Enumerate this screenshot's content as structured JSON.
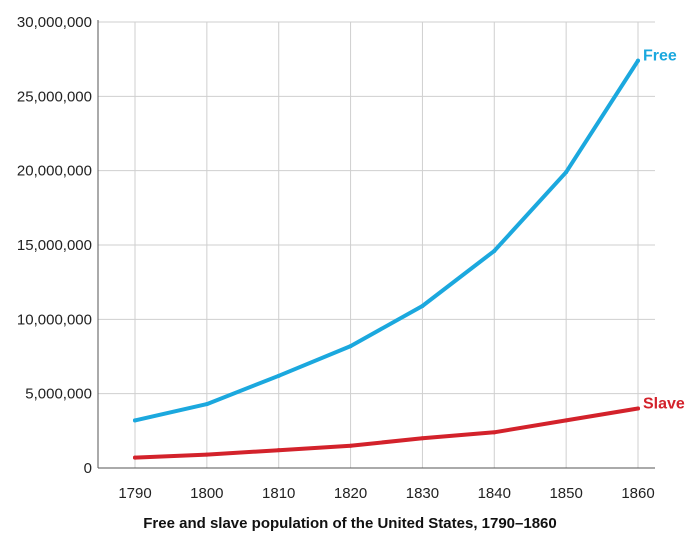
{
  "chart_data": {
    "type": "line",
    "caption": "Free and slave population of the United States, 1790–1860",
    "x": [
      "1790",
      "1800",
      "1810",
      "1820",
      "1830",
      "1840",
      "1850",
      "1860"
    ],
    "series": [
      {
        "name": "Free",
        "color": "#1ba8de",
        "values": [
          3200000,
          4300000,
          6200000,
          8200000,
          10900000,
          14600000,
          19900000,
          27400000
        ]
      },
      {
        "name": "Slave",
        "color": "#d3222b",
        "values": [
          700000,
          900000,
          1200000,
          1500000,
          2000000,
          2400000,
          3200000,
          4000000
        ]
      }
    ],
    "y_ticks": [
      "0",
      "5,000,000",
      "10,000,000",
      "15,000,000",
      "20,000,000",
      "25,000,000",
      "30,000,000"
    ],
    "ylim": [
      0,
      30000000
    ],
    "grid": true,
    "legend": "labels at line ends"
  }
}
